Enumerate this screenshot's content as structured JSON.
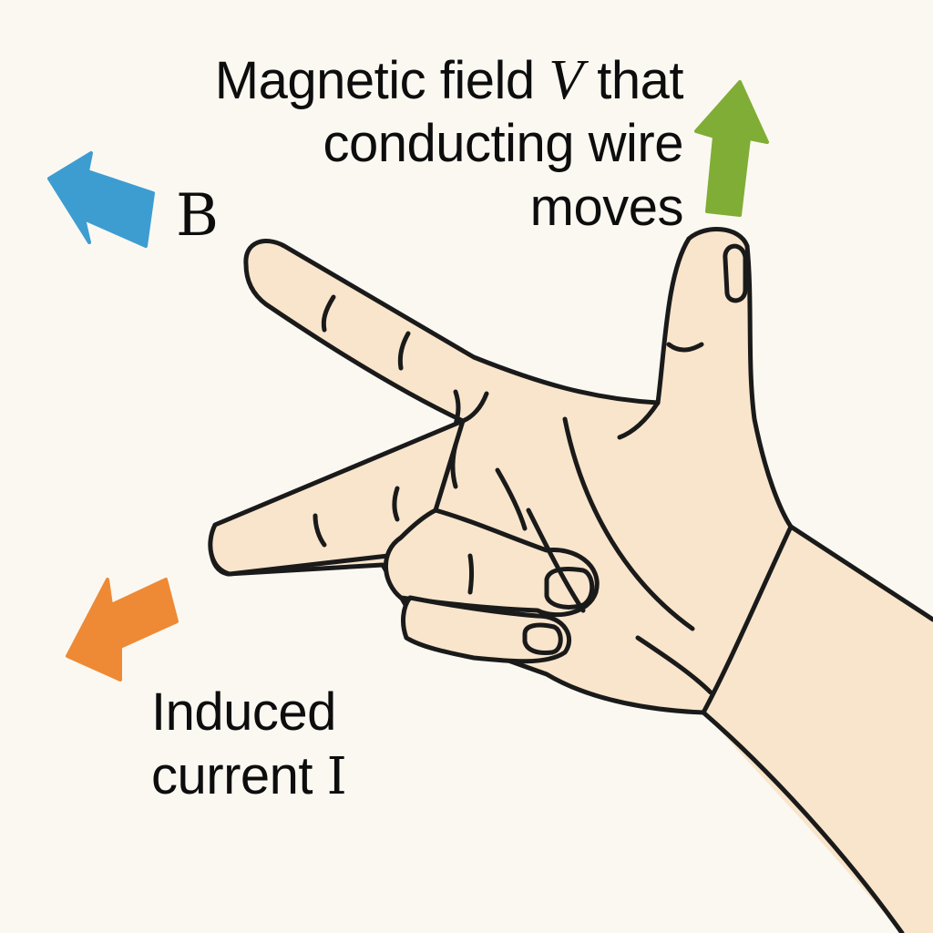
{
  "velocity_label": {
    "line1_text": "Magnetic field",
    "line1_symbol": "V",
    "line1_suffix": "that",
    "line2": "conducting wire",
    "line3": "moves"
  },
  "field_label": {
    "symbol": "B"
  },
  "current_label": {
    "line1": "Induced",
    "line2_text": "current",
    "line2_symbol": "I"
  },
  "colors": {
    "background": "#fbf8f2",
    "skin": "#f8e5cc",
    "outline": "#1a1a1a",
    "arrow_field": "#3d9dd0",
    "arrow_velocity": "#80ad35",
    "arrow_current": "#ee8a35"
  },
  "icons": [
    "arrow-up-icon",
    "arrow-up-left-icon",
    "arrow-down-left-icon",
    "right-hand-illustration"
  ]
}
